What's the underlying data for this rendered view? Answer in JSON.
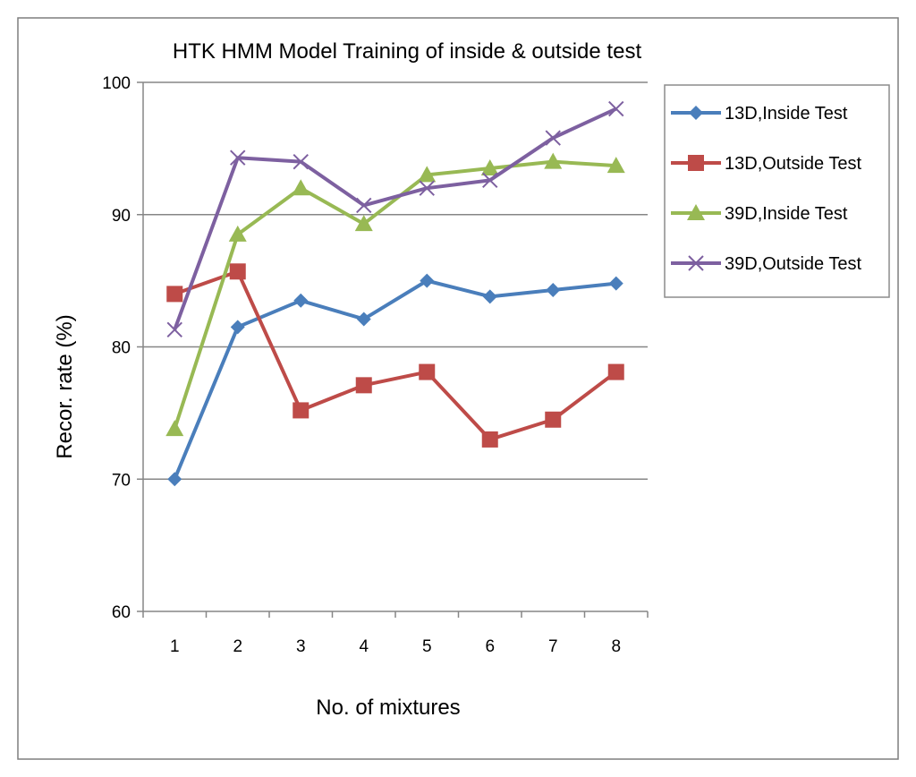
{
  "chart_data": {
    "type": "line",
    "title": "HTK HMM  Model Training of inside & outside test",
    "xlabel": "No. of mixtures",
    "ylabel": "Recor. rate (%)",
    "categories": [
      "1",
      "2",
      "3",
      "4",
      "5",
      "6",
      "7",
      "8"
    ],
    "ylim": [
      60,
      100
    ],
    "yticks": [
      60,
      70,
      80,
      90,
      100
    ],
    "grid": "horizontal",
    "legend": "right",
    "series": [
      {
        "name": "13D,Inside Test",
        "color": "#4a7ebb",
        "marker": "diamond",
        "values": [
          70,
          81.5,
          83.5,
          82.1,
          85,
          83.8,
          84.3,
          84.8
        ]
      },
      {
        "name": "13D,Outside Test",
        "color": "#be4b48",
        "marker": "square",
        "values": [
          84,
          85.7,
          75.2,
          77.1,
          78.1,
          73,
          74.5,
          78.1
        ]
      },
      {
        "name": "39D,Inside Test",
        "color": "#98b954",
        "marker": "triangle",
        "values": [
          73.8,
          88.5,
          92,
          89.3,
          93,
          93.5,
          94,
          93.7
        ]
      },
      {
        "name": "39D,Outside Test",
        "color": "#7d60a0",
        "marker": "x",
        "values": [
          81.3,
          94.3,
          94,
          90.7,
          92,
          92.6,
          95.8,
          98
        ]
      }
    ]
  }
}
